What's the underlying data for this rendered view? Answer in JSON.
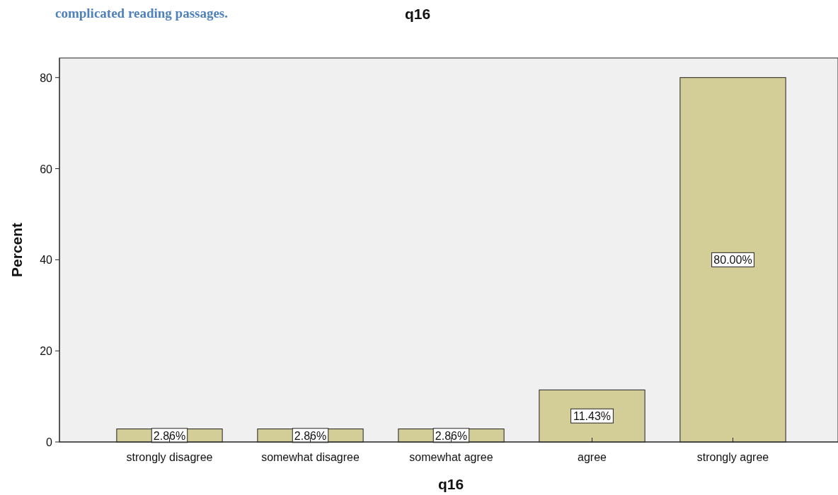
{
  "chart_data": {
    "type": "bar",
    "title": "q16",
    "categories": [
      "strongly disagree",
      "somewhat disagree",
      "somewhat agree",
      "agree",
      "strongly agree"
    ],
    "values": [
      2.86,
      2.86,
      2.86,
      11.43,
      80.0
    ],
    "value_labels": [
      "2.86%",
      "2.86%",
      "2.86%",
      "11.43%",
      "80.00%"
    ],
    "color": "#d3ce97",
    "xlabel": "q16",
    "ylabel": "Percent",
    "ylim": [
      0,
      84.3
    ],
    "yticks": [
      0,
      20,
      40,
      60,
      80
    ],
    "grid": false,
    "annotations": [
      "complicated reading passages."
    ]
  }
}
